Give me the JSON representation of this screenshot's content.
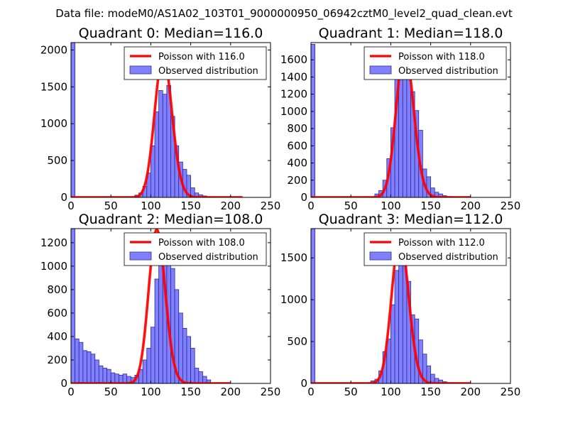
{
  "figure": {
    "suptitle": "Data file: modeM0/AS1A02_103T01_9000000950_06942cztM0_level2_quad_clean.evt"
  },
  "colors": {
    "bar_fill": "#8080ff",
    "bar_edge": "#2a2a9a",
    "fit_line": "#ff0000",
    "fit_line_alpha": "#ff8080"
  },
  "chart_data": [
    {
      "type": "bar",
      "title": "Quadrant 0: Median=116.0",
      "xlim": [
        0,
        250
      ],
      "ylim": [
        0,
        2100
      ],
      "xticks": [
        0,
        50,
        100,
        150,
        200,
        250
      ],
      "yticks": [
        0,
        500,
        1000,
        1500,
        2000
      ],
      "bin_width": 5,
      "bins": [
        0,
        80,
        85,
        90,
        95,
        100,
        105,
        110,
        115,
        120,
        125,
        130,
        135,
        140,
        145,
        150,
        155,
        160,
        165,
        170,
        175
      ],
      "values": [
        2120,
        30,
        60,
        150,
        330,
        700,
        1160,
        1450,
        1400,
        1520,
        1100,
        700,
        480,
        380,
        300,
        130,
        60,
        35,
        20,
        10,
        5
      ],
      "fit": {
        "label": "Poisson with 116.0",
        "mean": 116.0,
        "peak": 1920,
        "range": [
          0,
          215
        ]
      },
      "legend": [
        "Poisson with 116.0",
        "Observed distribution"
      ]
    },
    {
      "type": "bar",
      "title": "Quadrant 1: Median=118.0",
      "xlim": [
        0,
        250
      ],
      "ylim": [
        0,
        1800
      ],
      "xticks": [
        0,
        50,
        100,
        150,
        200,
        250
      ],
      "yticks": [
        0,
        200,
        400,
        600,
        800,
        1000,
        1200,
        1400,
        1600
      ],
      "bin_width": 5,
      "bins": [
        0,
        80,
        85,
        90,
        95,
        100,
        105,
        110,
        115,
        120,
        125,
        130,
        135,
        140,
        145,
        150,
        155,
        160,
        165,
        170,
        175,
        180
      ],
      "values": [
        1780,
        40,
        80,
        200,
        450,
        810,
        1480,
        1620,
        1520,
        1560,
        1230,
        1010,
        780,
        330,
        240,
        110,
        60,
        40,
        20,
        10,
        5,
        5
      ],
      "fit": {
        "label": "Poisson with 118.0",
        "mean": 118.0,
        "peak": 1720,
        "range": [
          0,
          200
        ]
      },
      "legend": [
        "Poisson with 118.0",
        "Observed distribution"
      ]
    },
    {
      "type": "bar",
      "title": "Quadrant 2: Median=108.0",
      "xlim": [
        0,
        250
      ],
      "ylim": [
        0,
        1320
      ],
      "xticks": [
        0,
        50,
        100,
        150,
        200,
        250
      ],
      "yticks": [
        0,
        200,
        400,
        600,
        800,
        1000,
        1200
      ],
      "bin_width": 5,
      "bins": [
        0,
        5,
        10,
        15,
        20,
        25,
        30,
        35,
        40,
        45,
        50,
        55,
        60,
        65,
        70,
        75,
        80,
        85,
        90,
        95,
        100,
        105,
        110,
        115,
        120,
        125,
        130,
        135,
        140,
        145,
        150,
        155,
        160,
        165,
        170
      ],
      "values": [
        1320,
        380,
        350,
        280,
        270,
        250,
        200,
        150,
        130,
        120,
        90,
        80,
        70,
        80,
        60,
        50,
        70,
        120,
        200,
        300,
        480,
        890,
        1230,
        1160,
        1200,
        980,
        800,
        600,
        470,
        400,
        300,
        130,
        100,
        60,
        30
      ],
      "fit": {
        "label": "Poisson with 108.0",
        "mean": 108.0,
        "peak": 1310,
        "range": [
          0,
          200
        ]
      },
      "legend": [
        "Poisson with 108.0",
        "Observed distribution"
      ]
    },
    {
      "type": "bar",
      "title": "Quadrant 3: Median=112.0",
      "xlim": [
        0,
        250
      ],
      "ylim": [
        0,
        1850
      ],
      "xticks": [
        0,
        50,
        100,
        150,
        200,
        250
      ],
      "yticks": [
        0,
        500,
        1000,
        1500
      ],
      "bin_width": 5,
      "bins": [
        0,
        75,
        80,
        85,
        90,
        95,
        100,
        105,
        110,
        115,
        120,
        125,
        130,
        135,
        140,
        145,
        150,
        155,
        160,
        165,
        170,
        175
      ],
      "values": [
        1850,
        30,
        50,
        150,
        380,
        530,
        940,
        1350,
        1650,
        1580,
        1220,
        820,
        770,
        520,
        350,
        210,
        110,
        60,
        40,
        20,
        10,
        5
      ],
      "fit": {
        "label": "Poisson with 112.0",
        "mean": 112.0,
        "peak": 1750,
        "range": [
          0,
          200
        ]
      },
      "legend": [
        "Poisson with 112.0",
        "Observed distribution"
      ]
    }
  ]
}
